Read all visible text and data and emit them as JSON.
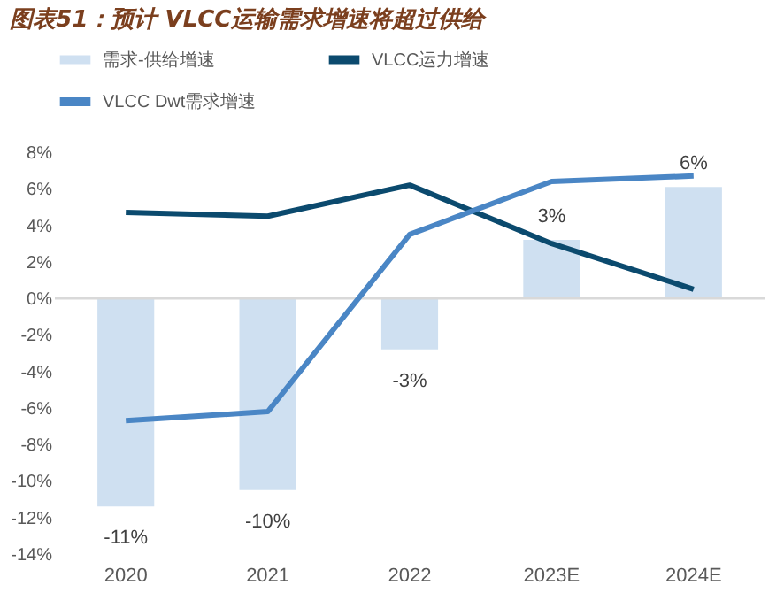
{
  "chart_data": {
    "type": "bar",
    "title": "图表51：预计 VLCC运输需求增速将超过供给",
    "categories": [
      "2020",
      "2021",
      "2022",
      "2023E",
      "2024E"
    ],
    "series": [
      {
        "name": "需求-供给增速",
        "color": "#cfe0f1",
        "values": [
          -11.4,
          -10.5,
          -2.8,
          3.2,
          6.1
        ],
        "value_labels": [
          "-11%",
          "-10%",
          "-3%",
          "3%",
          "6%"
        ]
      },
      {
        "name": "VLCC运力增速",
        "type": "line",
        "color": "#0b4a6e",
        "values": [
          4.7,
          4.5,
          6.2,
          3.0,
          0.5
        ]
      },
      {
        "name": "VLCC Dwt需求增速",
        "type": "line",
        "color": "#4a86c5",
        "values": [
          -6.7,
          -6.2,
          3.5,
          6.4,
          6.7
        ]
      }
    ],
    "ylim": [
      -14,
      8
    ],
    "yticks": [
      {
        "value": -14,
        "label": "-14%"
      },
      {
        "value": -12,
        "label": "-12%"
      },
      {
        "value": -10,
        "label": "-10%"
      },
      {
        "value": -8,
        "label": "-8%"
      },
      {
        "value": -6,
        "label": "-6%"
      },
      {
        "value": -4,
        "label": "-4%"
      },
      {
        "value": -2,
        "label": "-2%"
      },
      {
        "value": 0,
        "label": "0%"
      },
      {
        "value": 2,
        "label": "2%"
      },
      {
        "value": 4,
        "label": "4%"
      },
      {
        "value": 6,
        "label": "6%"
      },
      {
        "value": 8,
        "label": "8%"
      }
    ],
    "ref_lines": [
      {
        "axis": "y",
        "value": 0,
        "color": "#d9d9d9"
      }
    ],
    "grid": false,
    "legend": "top",
    "line_style": "solid",
    "marker": "none"
  }
}
